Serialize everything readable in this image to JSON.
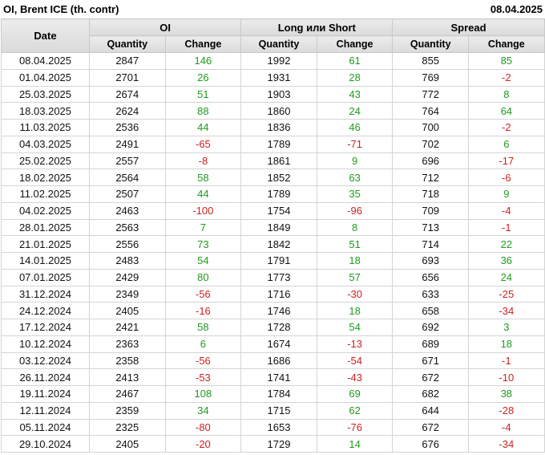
{
  "header": {
    "title": "OI, Brent ICE (th. contr)",
    "date": "08.04.2025"
  },
  "table": {
    "date_header": "Date",
    "groups": [
      "OI",
      "Long или Short",
      "Spread"
    ],
    "sub_headers": [
      "Quantity",
      "Change"
    ]
  },
  "colors": {
    "positive": "#1f9b1f",
    "negative": "#cc2222",
    "header_bg": "#e0e0e0",
    "border": "#d4d4d4"
  },
  "chart_data": {
    "type": "table",
    "columns": [
      "Date",
      "OI Quantity",
      "OI Change",
      "Long или Short Quantity",
      "Long или Short Change",
      "Spread Quantity",
      "Spread Change"
    ],
    "rows": [
      [
        "08.04.2025",
        2847,
        146,
        1992,
        61,
        855,
        85
      ],
      [
        "01.04.2025",
        2701,
        26,
        1931,
        28,
        769,
        -2
      ],
      [
        "25.03.2025",
        2674,
        51,
        1903,
        43,
        772,
        8
      ],
      [
        "18.03.2025",
        2624,
        88,
        1860,
        24,
        764,
        64
      ],
      [
        "11.03.2025",
        2536,
        44,
        1836,
        46,
        700,
        -2
      ],
      [
        "04.03.2025",
        2491,
        -65,
        1789,
        -71,
        702,
        6
      ],
      [
        "25.02.2025",
        2557,
        -8,
        1861,
        9,
        696,
        -17
      ],
      [
        "18.02.2025",
        2564,
        58,
        1852,
        63,
        712,
        -6
      ],
      [
        "11.02.2025",
        2507,
        44,
        1789,
        35,
        718,
        9
      ],
      [
        "04.02.2025",
        2463,
        -100,
        1754,
        -96,
        709,
        -4
      ],
      [
        "28.01.2025",
        2563,
        7,
        1849,
        8,
        713,
        -1
      ],
      [
        "21.01.2025",
        2556,
        73,
        1842,
        51,
        714,
        22
      ],
      [
        "14.01.2025",
        2483,
        54,
        1791,
        18,
        693,
        36
      ],
      [
        "07.01.2025",
        2429,
        80,
        1773,
        57,
        656,
        24
      ],
      [
        "31.12.2024",
        2349,
        -56,
        1716,
        -30,
        633,
        -25
      ],
      [
        "24.12.2024",
        2405,
        -16,
        1746,
        18,
        658,
        -34
      ],
      [
        "17.12.2024",
        2421,
        58,
        1728,
        54,
        692,
        3
      ],
      [
        "10.12.2024",
        2363,
        6,
        1674,
        -13,
        689,
        18
      ],
      [
        "03.12.2024",
        2358,
        -56,
        1686,
        -54,
        671,
        -1
      ],
      [
        "26.11.2024",
        2413,
        -53,
        1741,
        -43,
        672,
        -10
      ],
      [
        "19.11.2024",
        2467,
        108,
        1784,
        69,
        682,
        38
      ],
      [
        "12.11.2024",
        2359,
        34,
        1715,
        62,
        644,
        -28
      ],
      [
        "05.11.2024",
        2325,
        -80,
        1653,
        -76,
        672,
        -4
      ],
      [
        "29.10.2024",
        2405,
        -20,
        1729,
        14,
        676,
        -34
      ]
    ]
  }
}
